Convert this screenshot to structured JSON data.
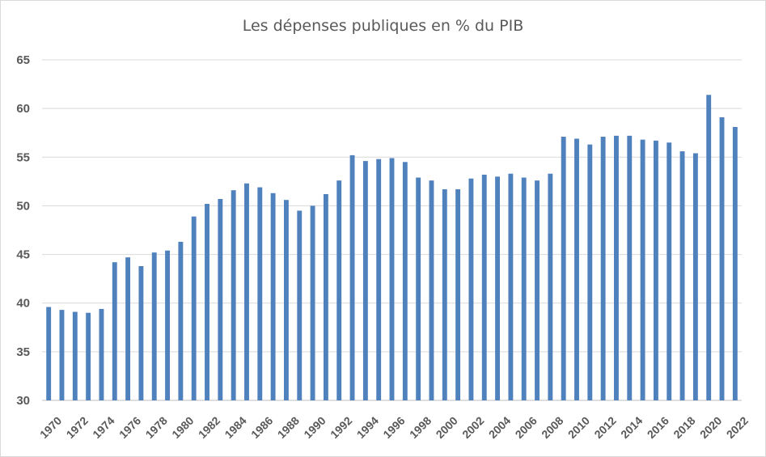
{
  "chart_data": {
    "type": "bar",
    "title": "Les dépenses publiques  en % du PIB",
    "xlabel": "",
    "ylabel": "",
    "ylim": [
      30,
      65
    ],
    "yticks": [
      30,
      35,
      40,
      45,
      50,
      55,
      60,
      65
    ],
    "grid": true,
    "bar_color": "#4f81bd",
    "categories": [
      "1970",
      "1971",
      "1972",
      "1973",
      "1974",
      "1975",
      "1976",
      "1977",
      "1978",
      "1979",
      "1980",
      "1981",
      "1982",
      "1983",
      "1984",
      "1985",
      "1986",
      "1987",
      "1988",
      "1989",
      "1990",
      "1991",
      "1992",
      "1993",
      "1994",
      "1995",
      "1996",
      "1997",
      "1998",
      "1999",
      "2000",
      "2001",
      "2002",
      "2003",
      "2004",
      "2005",
      "2006",
      "2007",
      "2008",
      "2009",
      "2010",
      "2011",
      "2012",
      "2013",
      "2014",
      "2015",
      "2016",
      "2017",
      "2018",
      "2019",
      "2020",
      "2021",
      "2022"
    ],
    "tick_labels": [
      "1970",
      "",
      "1972",
      "",
      "1974",
      "",
      "1976",
      "",
      "1978",
      "",
      "1980",
      "",
      "1982",
      "",
      "1984",
      "",
      "1986",
      "",
      "1988",
      "",
      "1990",
      "",
      "1992",
      "",
      "1994",
      "",
      "1996",
      "",
      "1998",
      "",
      "2000",
      "",
      "2002",
      "",
      "2004",
      "",
      "2006",
      "",
      "2008",
      "",
      "2010",
      "",
      "2012",
      "",
      "2014",
      "",
      "2016",
      "",
      "2018",
      "",
      "2020",
      "",
      "2022"
    ],
    "values": [
      39.6,
      39.3,
      39.1,
      39.0,
      39.4,
      44.2,
      44.7,
      43.8,
      45.2,
      45.4,
      46.3,
      48.9,
      50.2,
      50.7,
      51.6,
      52.3,
      51.9,
      51.3,
      50.6,
      49.5,
      50.0,
      51.2,
      52.6,
      55.2,
      54.6,
      54.8,
      54.9,
      54.5,
      52.9,
      52.6,
      51.7,
      51.7,
      52.8,
      53.2,
      53.0,
      53.3,
      52.9,
      52.6,
      53.3,
      57.1,
      56.9,
      56.3,
      57.1,
      57.2,
      57.2,
      56.8,
      56.7,
      56.5,
      55.6,
      55.4,
      61.4,
      59.1,
      58.1
    ]
  }
}
